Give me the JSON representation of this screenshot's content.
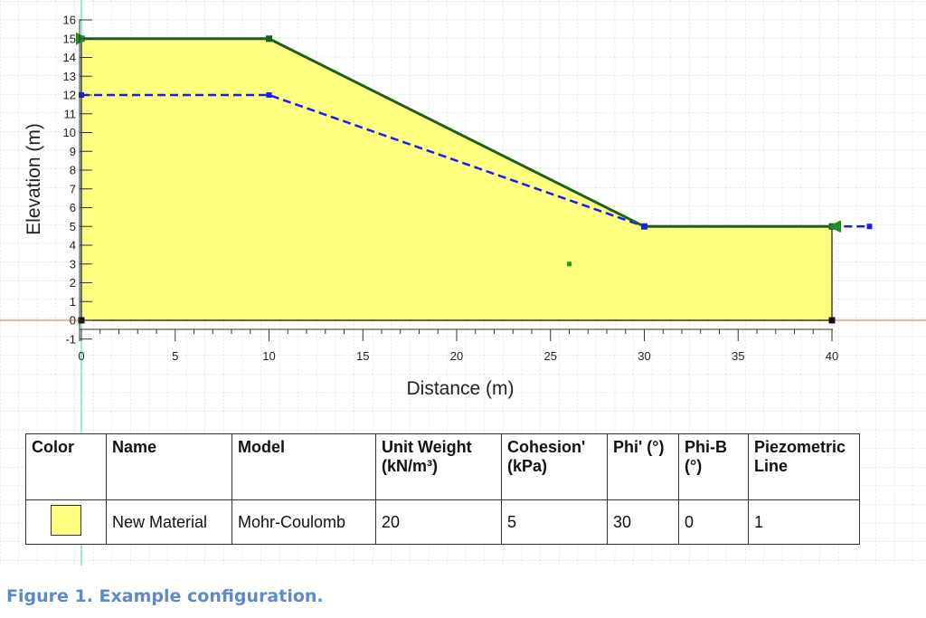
{
  "plot": {
    "xlabel": "Distance (m)",
    "ylabel": "Elevation (m)",
    "x_ticks": [
      "0",
      "5",
      "10",
      "15",
      "20",
      "25",
      "30",
      "35",
      "40"
    ],
    "y_ticks": [
      "-1",
      "0",
      "1",
      "2",
      "3",
      "4",
      "5",
      "6",
      "7",
      "8",
      "9",
      "10",
      "11",
      "12",
      "13",
      "14",
      "15",
      "16"
    ],
    "xlim": [
      0,
      40
    ],
    "ylim": [
      -1,
      16
    ],
    "grid": true,
    "colors": {
      "material_fill": "#ffff80",
      "slope_surface": "#1e5f1e",
      "water_table": "#1a1aff",
      "origin_x_axis": "#f08080",
      "origin_y_axis": "#5fe0a0"
    },
    "slope_surface": [
      [
        0,
        15
      ],
      [
        10,
        15
      ],
      [
        30,
        5
      ],
      [
        40,
        5
      ]
    ],
    "boundary": [
      [
        0,
        0
      ],
      [
        0,
        15
      ],
      [
        10,
        15
      ],
      [
        30,
        5
      ],
      [
        40,
        5
      ],
      [
        40,
        0
      ]
    ],
    "water_table": [
      [
        0,
        12
      ],
      [
        10,
        12
      ],
      [
        30,
        5
      ],
      [
        42,
        5
      ]
    ],
    "material_label_point": [
      26,
      3
    ]
  },
  "table": {
    "headers": {
      "color": "Color",
      "name": "Name",
      "model": "Model",
      "unit_weight": [
        "Unit Weight",
        "(kN/m³)"
      ],
      "cohesion": [
        "Cohesion'",
        "(kPa)"
      ],
      "phi": "Phi' (°)",
      "phi_b": [
        "Phi-B",
        "(°)"
      ],
      "piezo": [
        "Piezometric",
        "Line"
      ]
    },
    "row": {
      "color": "#ffff80",
      "name": "New Material",
      "model": "Mohr-Coulomb",
      "unit_weight": "20",
      "cohesion": "5",
      "phi": "30",
      "phi_b": "0",
      "piezo": "1"
    }
  },
  "caption": "Figure 1. Example configuration."
}
